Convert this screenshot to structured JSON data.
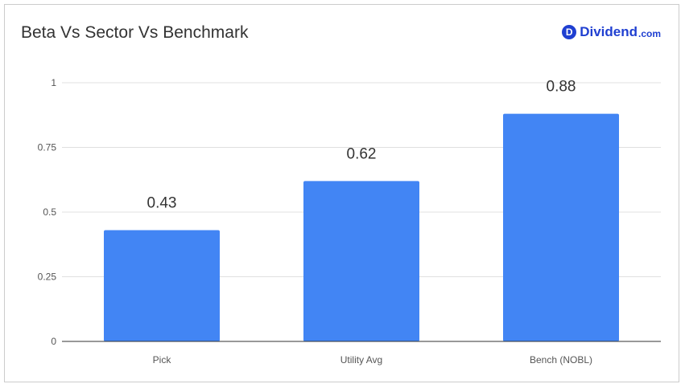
{
  "brand": {
    "badge": "D",
    "name": "Dividend",
    "tld": ".com",
    "color": "#1f3fd1"
  },
  "chart_data": {
    "type": "bar",
    "title": "Beta Vs Sector Vs Benchmark",
    "xlabel": "",
    "ylabel": "",
    "categories": [
      "Pick",
      "Utility Avg",
      "Bench (NOBL)"
    ],
    "values": [
      0.43,
      0.62,
      0.88
    ],
    "data_labels": [
      "0.43",
      "0.62",
      "0.88"
    ],
    "ylim": [
      0,
      1
    ],
    "yticks": [
      0,
      0.25,
      0.5,
      0.75,
      1
    ],
    "ytick_labels": [
      "0",
      "0.25",
      "0.5",
      "0.75",
      "1"
    ],
    "bar_color": "#4285f4",
    "grid": true,
    "legend": "none"
  }
}
